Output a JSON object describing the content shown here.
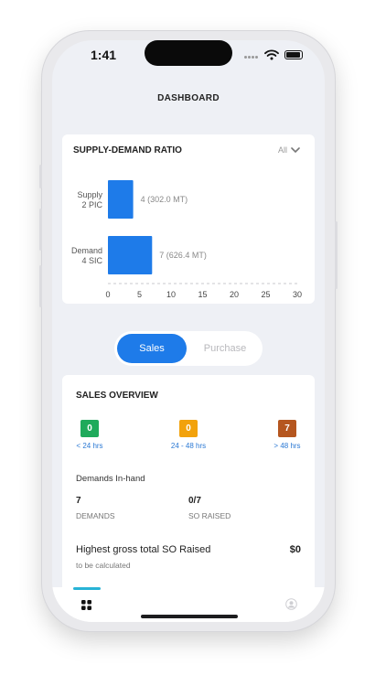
{
  "status_bar": {
    "time": "1:41"
  },
  "header": {
    "title": "DASHBOARD"
  },
  "supply_demand": {
    "title": "SUPPLY-DEMAND RATIO",
    "filter_label": "All"
  },
  "chart_data": {
    "type": "bar",
    "orientation": "horizontal",
    "categories": [
      {
        "line1": "Supply",
        "line2": "2 PIC"
      },
      {
        "line1": "Demand",
        "line2": "4 SIC"
      }
    ],
    "values": [
      4,
      7
    ],
    "data_labels": [
      "4 (302.0 MT)",
      "7 (626.4 MT)"
    ],
    "xlim": [
      0,
      30
    ],
    "xticks": [
      0,
      5,
      10,
      15,
      20,
      25,
      30
    ],
    "title": "",
    "xlabel": "",
    "ylabel": "",
    "bar_color": "#1e7be9"
  },
  "mode_toggle": {
    "sales_label": "Sales",
    "purchase_label": "Purchase",
    "active": "Sales"
  },
  "sales_overview": {
    "title": "SALES OVERVIEW",
    "aging": [
      {
        "count": "0",
        "label": "< 24 hrs",
        "color": "#1faa5b"
      },
      {
        "count": "0",
        "label": "24 - 48 hrs",
        "color": "#f2a20c"
      },
      {
        "count": "7",
        "label": "> 48 hrs",
        "color": "#b5561f"
      }
    ],
    "demands_inhand": {
      "heading": "Demands In-hand",
      "demands_value": "7",
      "demands_label": "DEMANDS",
      "so_value": "0/7",
      "so_label": "SO RAISED"
    },
    "gross": {
      "label": "Highest gross total SO Raised",
      "value": "$0",
      "sub": "to be calculated"
    }
  },
  "colors": {
    "accent": "#1e7be9",
    "tab_indicator": "#28b3d6"
  }
}
